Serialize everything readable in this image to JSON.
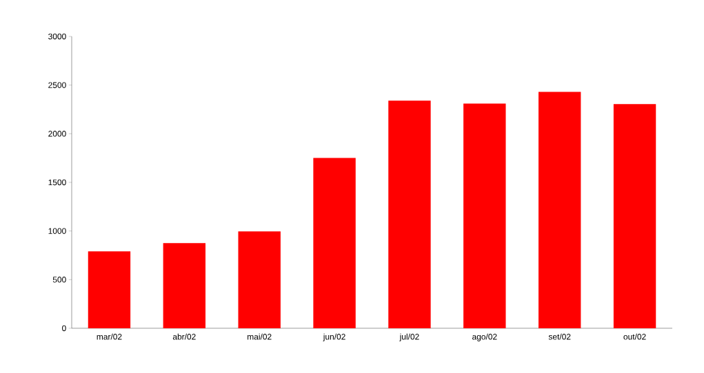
{
  "chart_data": {
    "type": "bar",
    "categories": [
      "mar/02",
      "abr/02",
      "mai/02",
      "jun/02",
      "jul/02",
      "ago/02",
      "set/02",
      "out/02"
    ],
    "values": [
      785,
      870,
      990,
      1745,
      2335,
      2305,
      2425,
      2300
    ],
    "color": "#ff0000",
    "ylim": [
      0,
      3000
    ],
    "yticks": [
      0,
      500,
      1000,
      1500,
      2000,
      2500,
      3000
    ]
  }
}
